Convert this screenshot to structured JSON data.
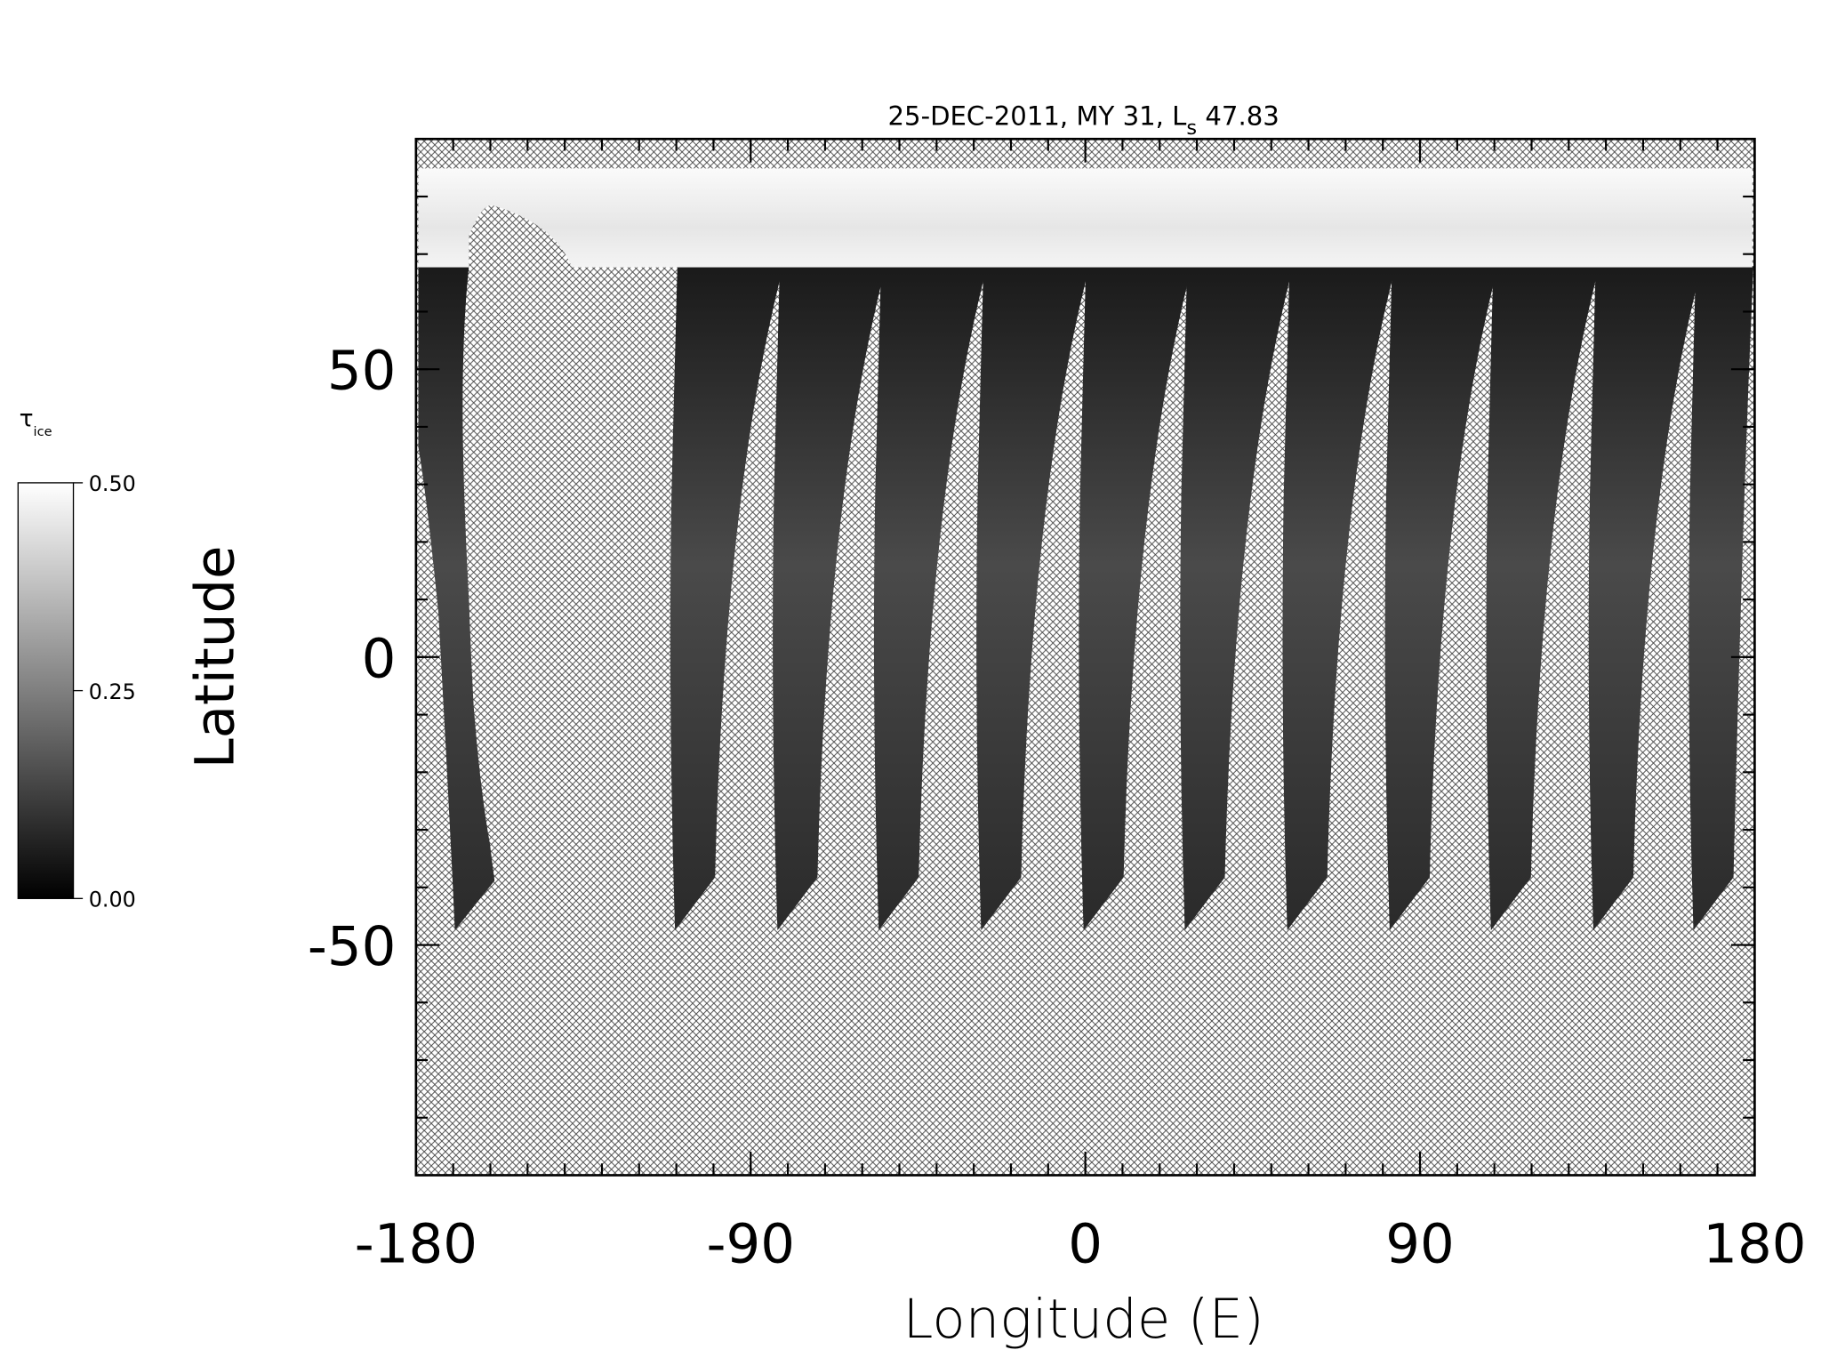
{
  "chart_data": {
    "type": "map",
    "title": {
      "main": "25-DEC-2011, MY 31,  L",
      "sub": "s",
      "rest": " 47.83"
    },
    "xlabel": "Longitude (E)",
    "ylabel": "Latitude",
    "xlim": [
      -180,
      180
    ],
    "xticks": [
      -180,
      -90,
      0,
      90,
      180
    ],
    "xminor": 10,
    "ylim": [
      -90,
      90
    ],
    "yticks": [
      -50,
      0,
      50
    ],
    "yminor": 10,
    "colorbar": {
      "label": {
        "symbol": "τ",
        "sub": "ice"
      },
      "range": [
        0,
        0.5
      ],
      "ticks": [
        {
          "value": 0,
          "label": "0.00"
        },
        {
          "value": 0.25,
          "label": "0.25"
        },
        {
          "value": 0.5,
          "label": "0.50"
        }
      ],
      "colors": [
        "#000000",
        "#ffffff"
      ]
    }
  }
}
